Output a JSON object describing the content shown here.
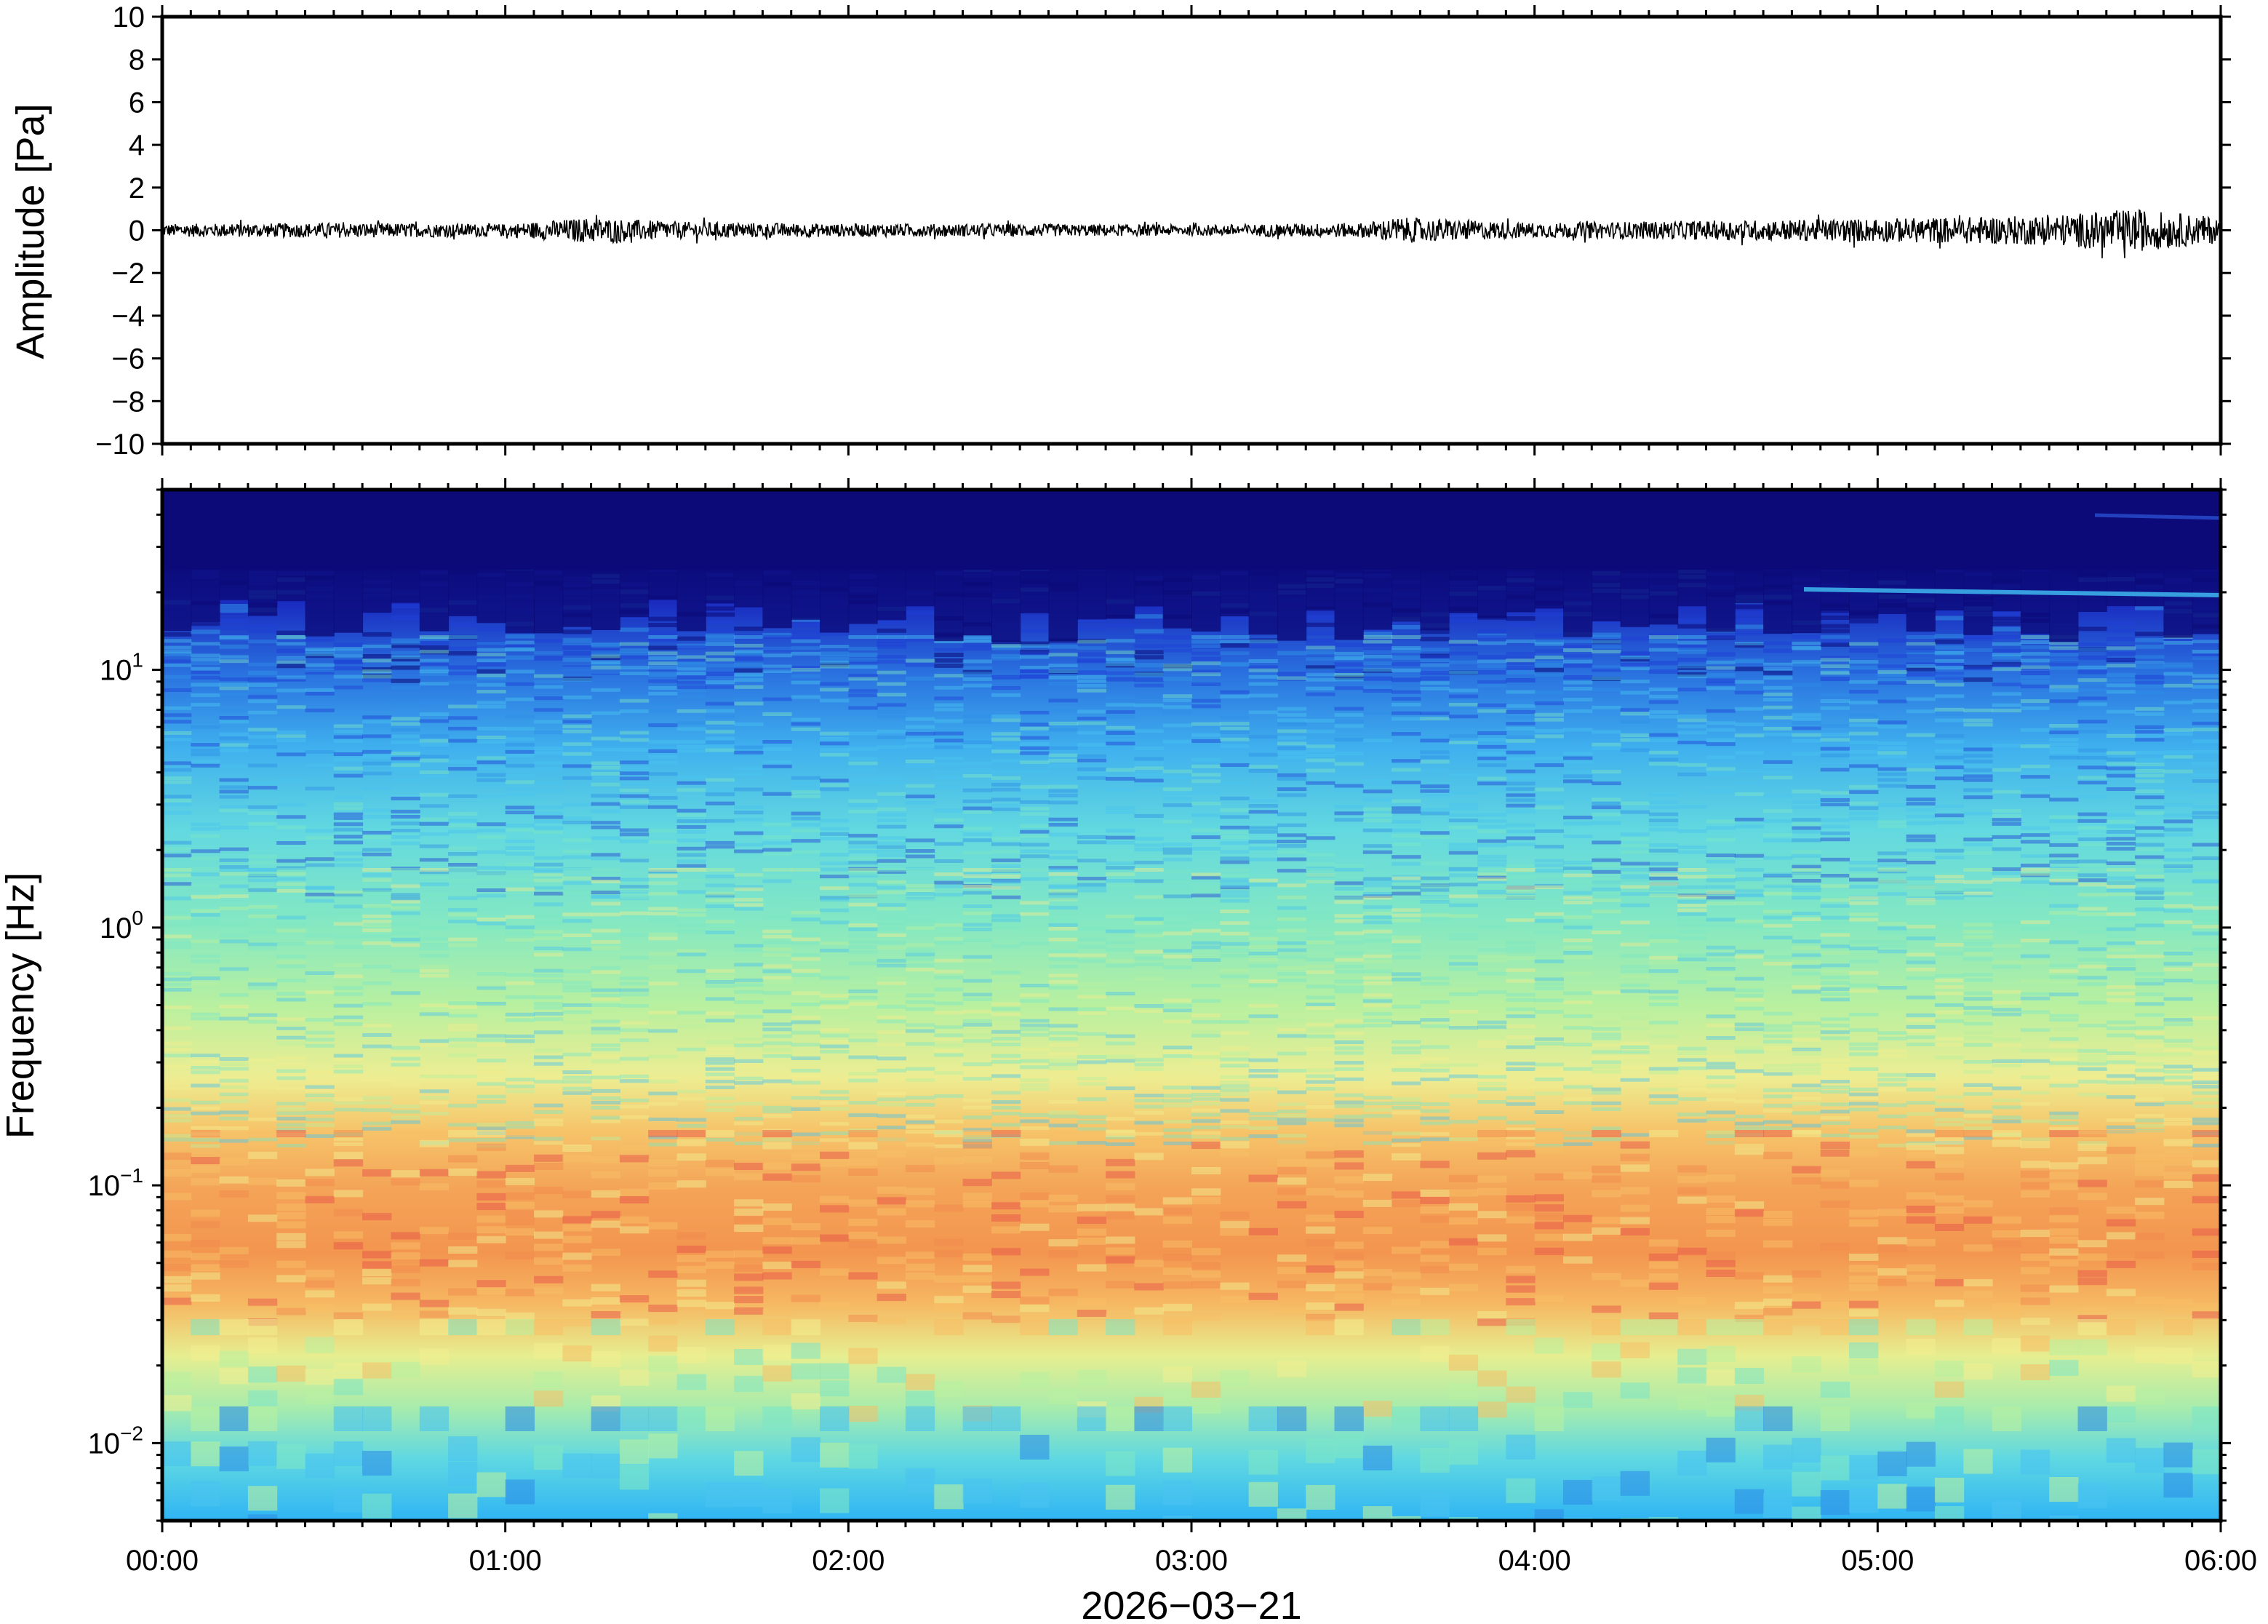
{
  "chart_data": [
    {
      "panel": "waveform",
      "type": "line",
      "ylabel": "Amplitude [Pa]",
      "ylim": [
        -10,
        10
      ],
      "yticks": [
        10,
        8,
        6,
        4,
        2,
        0,
        -2,
        -4,
        -6,
        -8,
        -10
      ],
      "ytick_labels": [
        "10",
        "8",
        "6",
        "4",
        "2",
        "0",
        "−2",
        "−4",
        "−6",
        "−8",
        "−10"
      ],
      "x_range_hours": [
        0,
        6
      ],
      "series": [
        {
          "x_hours": [
            0,
            0.5,
            1,
            1.25,
            1.5,
            2,
            2.5,
            3,
            3.5,
            3.6,
            4,
            4.5,
            5,
            5.5,
            5.75,
            6
          ],
          "envelope_pa": [
            0.3,
            0.35,
            0.3,
            0.6,
            0.4,
            0.3,
            0.3,
            0.25,
            0.35,
            0.6,
            0.35,
            0.45,
            0.55,
            0.7,
            1.0,
            0.6
          ]
        }
      ],
      "color": "#000000"
    },
    {
      "panel": "spectrogram",
      "type": "heatmap",
      "ylabel": "Frequency [Hz]",
      "yscale": "log",
      "ylim": [
        0.005,
        50
      ],
      "yticks": [
        0.01,
        0.1,
        1,
        10
      ],
      "ytick_labels": [
        {
          "base": "10",
          "exp": "−2"
        },
        {
          "base": "10",
          "exp": "−1"
        },
        {
          "base": "10",
          "exp": "0"
        },
        {
          "base": "10",
          "exp": "1"
        }
      ],
      "xlabel": "2026−03−21",
      "xticks_hours": [
        0,
        1,
        2,
        3,
        4,
        5,
        6
      ],
      "xtick_labels": [
        "00:00",
        "01:00",
        "02:00",
        "03:00",
        "04:00",
        "05:00",
        "06:00"
      ],
      "x_range_hours": [
        0,
        6
      ],
      "colormap": [
        "#0b0a78",
        "#1f3fd6",
        "#2f8fe6",
        "#49c3f0",
        "#7de6c6",
        "#b8f0a0",
        "#f2ee8f",
        "#f7c066",
        "#f2894d",
        "#e8564a"
      ],
      "colormap_note": "low power to high power",
      "colormap_label": "",
      "grid": false
    }
  ]
}
